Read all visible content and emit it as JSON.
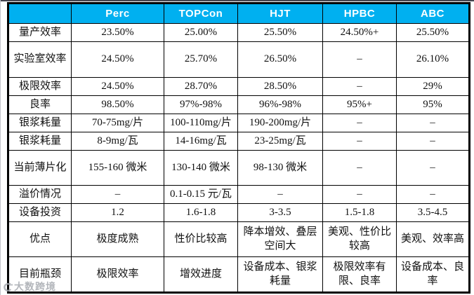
{
  "table": {
    "columns": [
      "",
      "Perc",
      "TOPCon",
      "HJT",
      "HPBC",
      "ABC"
    ],
    "rows": [
      {
        "label": "量产效率",
        "values": [
          "23.50%",
          "25.00%",
          "25.50%",
          "24.50%+",
          "25.50%"
        ]
      },
      {
        "label": "实验室效率",
        "values": [
          "24.50%",
          "25.70%",
          "26.50%",
          "–",
          "26.10%"
        ]
      },
      {
        "label": "极限效率",
        "values": [
          "24.50%",
          "28.70%",
          "28.50%",
          "–",
          "29%"
        ]
      },
      {
        "label": "良率",
        "values": [
          "98.50%",
          "97%-98%",
          "96%-98%",
          "95%+",
          "95%"
        ]
      },
      {
        "label": "银浆耗量",
        "values": [
          "70-75mg/片",
          "100-110mg/片",
          "190-200mg/片",
          "–",
          "–"
        ]
      },
      {
        "label": "银浆耗量",
        "values": [
          "8-9mg/瓦",
          "14-16mg/瓦",
          "23-25mg/瓦",
          "–",
          "–"
        ]
      },
      {
        "label": "当前薄片化",
        "values": [
          "155-160 微米",
          "130-140 微米",
          "98-130 微米",
          "–",
          "–"
        ]
      },
      {
        "label": "溢价情况",
        "values": [
          "–",
          "0.1-0.15 元/瓦",
          "–",
          "–",
          "–"
        ]
      },
      {
        "label": "设备投资",
        "values": [
          "1.2",
          "1.6-1.8",
          "3-3.5",
          "1.5-1.8",
          "3.5-4.5"
        ]
      },
      {
        "label": "优点",
        "values": [
          "极度成熟",
          "性价比较高",
          "降本增效、叠层空间大",
          "美观、性价比较高",
          "美观、效率高"
        ]
      },
      {
        "label": "目前瓶颈",
        "values": [
          "极限效率",
          "增效进度",
          "设备成本、银浆耗量",
          "极限效率有限、良率",
          "设备成本、良率"
        ]
      }
    ]
  },
  "watermark": {
    "text": "大数跨境"
  },
  "colors": {
    "header_bg": "#00B0F0",
    "header_text": "#FFFFFF",
    "border": "#000000",
    "body_text": "#111111"
  }
}
